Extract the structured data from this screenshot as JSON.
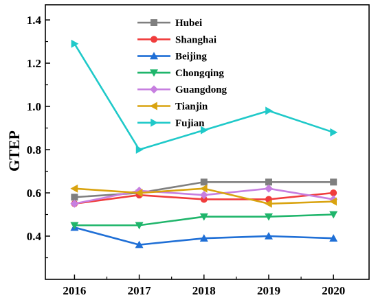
{
  "chart_data": {
    "type": "line",
    "title": "",
    "xlabel": "",
    "ylabel": "GTEP",
    "x": [
      2016,
      2017,
      2018,
      2019,
      2020
    ],
    "xlim": [
      2015.55,
      2020.55
    ],
    "ylim": [
      0.2,
      1.47
    ],
    "yticks": [
      0.4,
      0.6,
      0.8,
      1.0,
      1.2,
      1.4
    ],
    "ytick_labels": [
      "0.4",
      "0.6",
      "0.8",
      "1.0",
      "1.2",
      "1.4"
    ],
    "xtick_labels": [
      "2016",
      "2017",
      "2018",
      "2019",
      "2020"
    ],
    "grid": false,
    "legend_position": "top-center",
    "series": [
      {
        "name": "Hubei",
        "marker": "square",
        "color": "#7f7f7f",
        "values": [
          0.58,
          0.6,
          0.65,
          0.65,
          0.65
        ]
      },
      {
        "name": "Shanghai",
        "marker": "circle",
        "color": "#f03c3c",
        "values": [
          0.55,
          0.59,
          0.57,
          0.57,
          0.6
        ]
      },
      {
        "name": "Beijing",
        "marker": "triangle-up",
        "color": "#1f6fd6",
        "values": [
          0.44,
          0.36,
          0.39,
          0.4,
          0.39
        ]
      },
      {
        "name": "Chongqing",
        "marker": "triangle-down",
        "color": "#1fb56b",
        "values": [
          0.45,
          0.45,
          0.49,
          0.49,
          0.5
        ]
      },
      {
        "name": "Guangdong",
        "marker": "diamond",
        "color": "#c77fe0",
        "values": [
          0.55,
          0.61,
          0.59,
          0.62,
          0.57
        ]
      },
      {
        "name": "Tianjin",
        "marker": "triangle-left",
        "color": "#d9a30f",
        "values": [
          0.62,
          0.6,
          0.62,
          0.55,
          0.56
        ]
      },
      {
        "name": "Fujian",
        "marker": "triangle-right",
        "color": "#1fc9c9",
        "values": [
          1.29,
          0.8,
          0.89,
          0.98,
          0.88
        ]
      }
    ]
  }
}
